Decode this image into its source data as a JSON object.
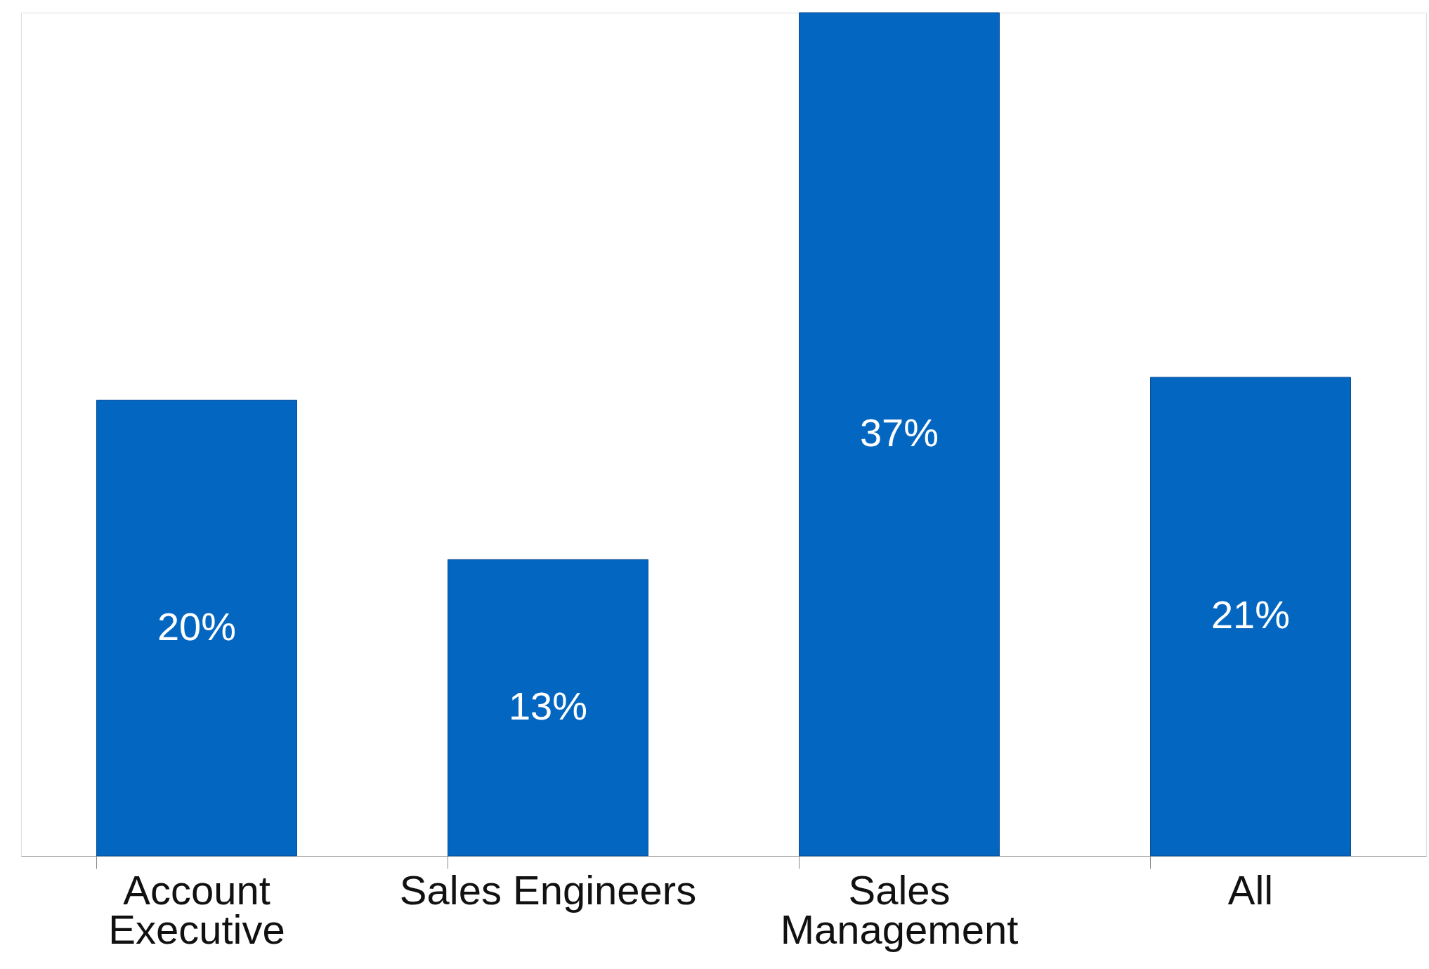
{
  "chart_data": {
    "type": "bar",
    "categories": [
      "Account\nExecutive",
      "Sales Engineers",
      "Sales\nManagement",
      "All"
    ],
    "values": [
      20,
      13,
      37,
      21
    ],
    "value_labels": [
      "20%",
      "13%",
      "37%",
      "21%"
    ],
    "color": "#0366c0"
  }
}
